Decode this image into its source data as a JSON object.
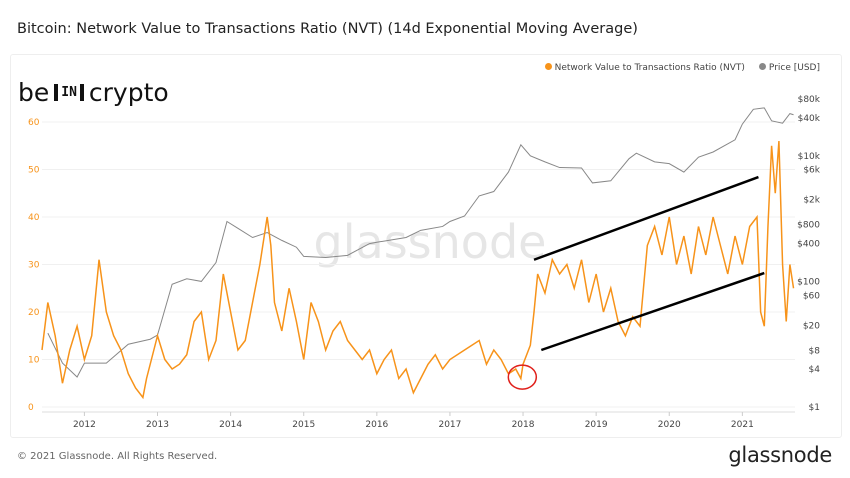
{
  "header": {
    "title": "Bitcoin: Network Value to Transactions Ratio (NVT) (14d Exponential Moving Average)"
  },
  "logo": {
    "left": "be",
    "mid": "IN",
    "right": "crypto"
  },
  "watermark": "glassnode",
  "footer": {
    "copyright": "© 2021 Glassnode. All Rights Reserved.",
    "brand": "glassnode"
  },
  "colors": {
    "nvt": "#f7931a",
    "price": "#888888",
    "trend": "#000000",
    "highlight": "#e0201b"
  },
  "chart_data": {
    "type": "line",
    "title": "Bitcoin: Network Value to Transactions Ratio (NVT) (14d Exponential Moving Average)",
    "legend": {
      "placement": "top-right",
      "entries": [
        "Network Value to Transactions Ratio (NVT)",
        "Price [USD]"
      ]
    },
    "x_ticks": [
      "2012",
      "2013",
      "2014",
      "2015",
      "2016",
      "2017",
      "2018",
      "2019",
      "2020",
      "2021"
    ],
    "xlim": [
      2011.42,
      2021.72
    ],
    "y_left": {
      "ticks": [
        "0",
        "10",
        "20",
        "30",
        "40",
        "50",
        "60"
      ],
      "range": [
        0,
        65
      ]
    },
    "y_right": {
      "scale": "log",
      "ticks": [
        {
          "v": 1,
          "l": "$1"
        },
        {
          "v": 4,
          "l": "$4"
        },
        {
          "v": 8,
          "l": "$8"
        },
        {
          "v": 20,
          "l": "$20"
        },
        {
          "v": 60,
          "l": "$60"
        },
        {
          "v": 100,
          "l": "$100"
        },
        {
          "v": 400,
          "l": "$400"
        },
        {
          "v": 800,
          "l": "$800"
        },
        {
          "v": 2000,
          "l": "$2k"
        },
        {
          "v": 6000,
          "l": "$6k"
        },
        {
          "v": 10000,
          "l": "$10k"
        },
        {
          "v": 40000,
          "l": "$40k"
        },
        {
          "v": 80000,
          "l": "$80k"
        }
      ]
    },
    "grid": true,
    "series": [
      {
        "name": "Network Value to Transactions Ratio (NVT)",
        "axis": "left",
        "x": [
          2011.42,
          2011.5,
          2011.6,
          2011.7,
          2011.8,
          2011.9,
          2012.0,
          2012.1,
          2012.2,
          2012.3,
          2012.4,
          2012.5,
          2012.6,
          2012.7,
          2012.8,
          2012.85,
          2012.95,
          2013.0,
          2013.1,
          2013.2,
          2013.3,
          2013.4,
          2013.5,
          2013.6,
          2013.7,
          2013.8,
          2013.9,
          2014.0,
          2014.1,
          2014.2,
          2014.3,
          2014.4,
          2014.5,
          2014.55,
          2014.6,
          2014.7,
          2014.8,
          2014.9,
          2015.0,
          2015.1,
          2015.2,
          2015.3,
          2015.4,
          2015.5,
          2015.6,
          2015.7,
          2015.8,
          2015.9,
          2016.0,
          2016.1,
          2016.2,
          2016.3,
          2016.4,
          2016.5,
          2016.6,
          2016.7,
          2016.8,
          2016.9,
          2017.0,
          2017.2,
          2017.4,
          2017.5,
          2017.6,
          2017.7,
          2017.8,
          2017.9,
          2017.97,
          2018.0,
          2018.1,
          2018.15,
          2018.2,
          2018.3,
          2018.4,
          2018.5,
          2018.6,
          2018.7,
          2018.8,
          2018.9,
          2019.0,
          2019.1,
          2019.2,
          2019.3,
          2019.4,
          2019.5,
          2019.6,
          2019.7,
          2019.8,
          2019.9,
          2020.0,
          2020.1,
          2020.2,
          2020.3,
          2020.4,
          2020.5,
          2020.6,
          2020.7,
          2020.8,
          2020.9,
          2021.0,
          2021.1,
          2021.2,
          2021.25,
          2021.3,
          2021.35,
          2021.4,
          2021.45,
          2021.5,
          2021.55,
          2021.6,
          2021.65,
          2021.7
        ],
        "y": [
          12,
          22,
          15,
          5,
          12,
          17,
          10,
          15,
          31,
          20,
          15,
          12,
          7,
          4,
          2,
          6,
          12,
          15,
          10,
          8,
          9,
          11,
          18,
          20,
          10,
          14,
          28,
          20,
          12,
          14,
          22,
          30,
          40,
          34,
          22,
          16,
          25,
          18,
          10,
          22,
          18,
          12,
          16,
          18,
          14,
          12,
          10,
          12,
          7,
          10,
          12,
          6,
          8,
          3,
          6,
          9,
          11,
          8,
          10,
          12,
          14,
          9,
          12,
          10,
          7,
          8,
          6,
          9,
          13,
          20,
          28,
          24,
          31,
          28,
          30,
          25,
          31,
          22,
          28,
          20,
          25,
          18,
          15,
          19,
          17,
          34,
          38,
          32,
          40,
          30,
          36,
          28,
          38,
          32,
          40,
          34,
          28,
          36,
          30,
          38,
          40,
          20,
          17,
          38,
          55,
          45,
          56,
          30,
          18,
          30,
          25
        ]
      },
      {
        "name": "Price [USD]",
        "axis": "right",
        "x": [
          2011.5,
          2011.7,
          2011.9,
          2012.0,
          2012.3,
          2012.6,
          2012.9,
          2013.0,
          2013.2,
          2013.4,
          2013.6,
          2013.8,
          2013.95,
          2014.1,
          2014.3,
          2014.5,
          2014.7,
          2014.9,
          2015.0,
          2015.3,
          2015.6,
          2015.9,
          2016.0,
          2016.4,
          2016.6,
          2016.9,
          2017.0,
          2017.2,
          2017.4,
          2017.6,
          2017.8,
          2017.97,
          2018.1,
          2018.3,
          2018.5,
          2018.8,
          2018.95,
          2019.2,
          2019.45,
          2019.55,
          2019.8,
          2020.0,
          2020.2,
          2020.4,
          2020.6,
          2020.9,
          2021.0,
          2021.15,
          2021.3,
          2021.4,
          2021.55,
          2021.65,
          2021.7
        ],
        "y": [
          15,
          5,
          3,
          5,
          5,
          10,
          12,
          14,
          90,
          110,
          100,
          200,
          900,
          700,
          500,
          600,
          450,
          350,
          250,
          240,
          260,
          400,
          420,
          500,
          650,
          750,
          900,
          1100,
          2300,
          2700,
          5500,
          15000,
          10000,
          8000,
          6500,
          6400,
          3700,
          4000,
          9000,
          11000,
          8000,
          7500,
          5500,
          9500,
          11500,
          18000,
          32000,
          55000,
          58000,
          36000,
          33000,
          47000,
          45000
        ]
      }
    ],
    "annotations": [
      {
        "type": "trendline",
        "from": [
          2018.15,
          31
        ],
        "to": [
          2021.22,
          48.4
        ]
      },
      {
        "type": "trendline",
        "from": [
          2018.25,
          12
        ],
        "to": [
          2021.3,
          28.2
        ]
      },
      {
        "type": "circle",
        "center": [
          2017.99,
          6.3
        ]
      }
    ]
  }
}
